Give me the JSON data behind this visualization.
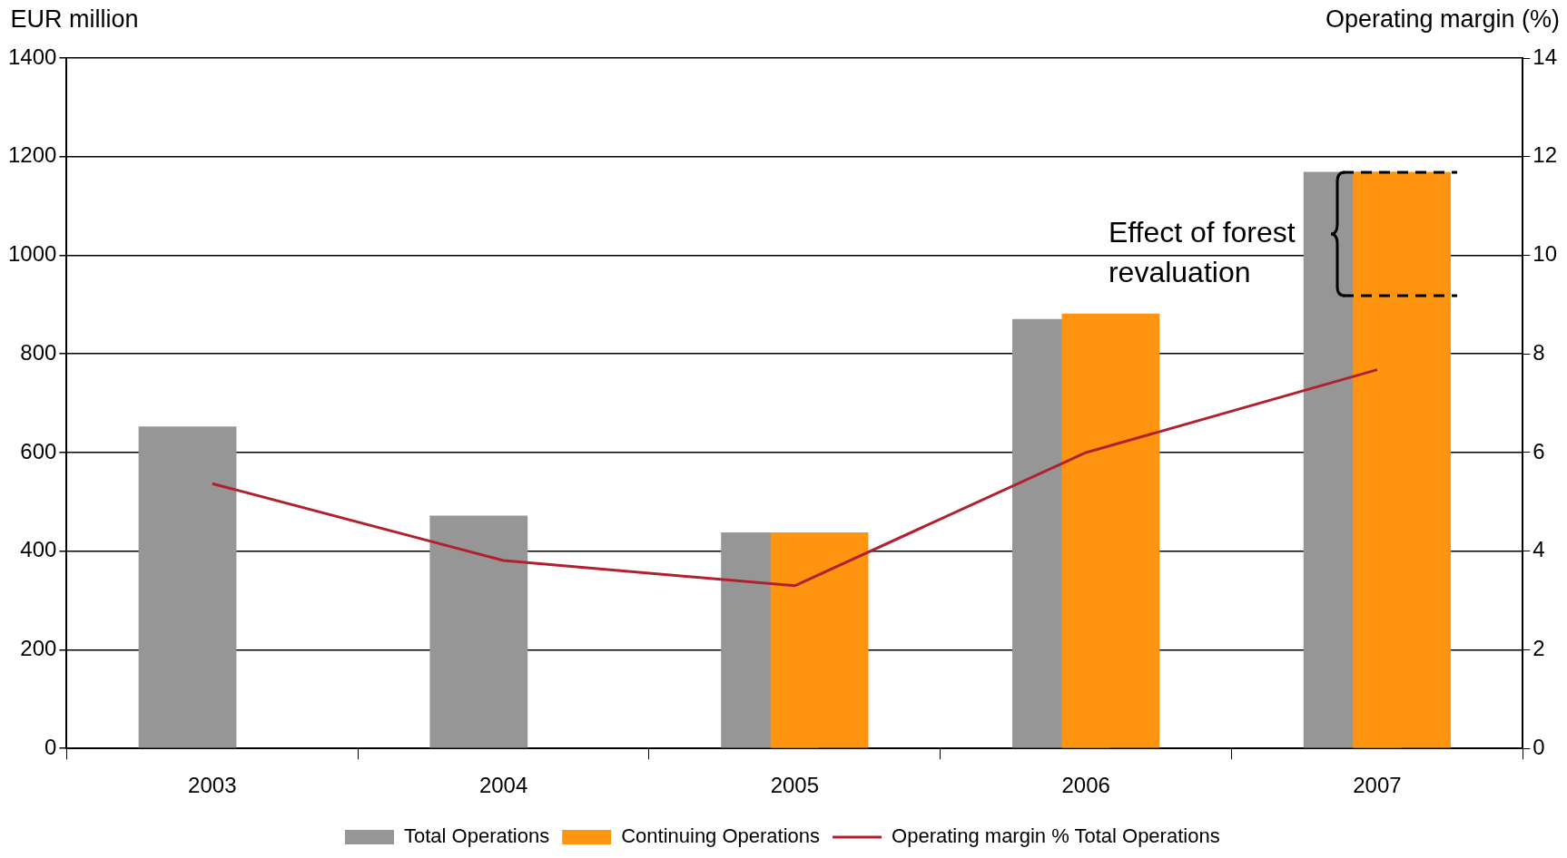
{
  "chart_data": {
    "type": "bar",
    "ylabel": "EUR million",
    "y2label": "Operating margin (%)",
    "categories": [
      "2003",
      "2004",
      "2005",
      "2006",
      "2007"
    ],
    "series": [
      {
        "name": "Total Operations",
        "color": "#969696",
        "values": [
          653,
          472,
          438,
          871,
          1169
        ]
      },
      {
        "name": "Continuing Operations",
        "color": "#ff9410",
        "values": [
          null,
          null,
          438,
          882,
          1169
        ]
      },
      {
        "name": "Operating margin % Total Operations",
        "type": "line",
        "axis": "y2",
        "color": "#b2202f",
        "values": [
          5.37,
          3.81,
          3.3,
          6.0,
          7.68
        ]
      }
    ],
    "ylim": [
      0,
      1400
    ],
    "yticks": [
      0,
      200,
      400,
      600,
      800,
      1000,
      1200,
      1400
    ],
    "y2lim": [
      0,
      14
    ],
    "y2ticks": [
      0,
      2,
      4,
      6,
      8,
      10,
      12,
      14
    ],
    "grid": "y",
    "legend": "bottom",
    "marker": "none",
    "line_style": "solid",
    "annotations": [
      "Effect of forest revaluation"
    ]
  }
}
